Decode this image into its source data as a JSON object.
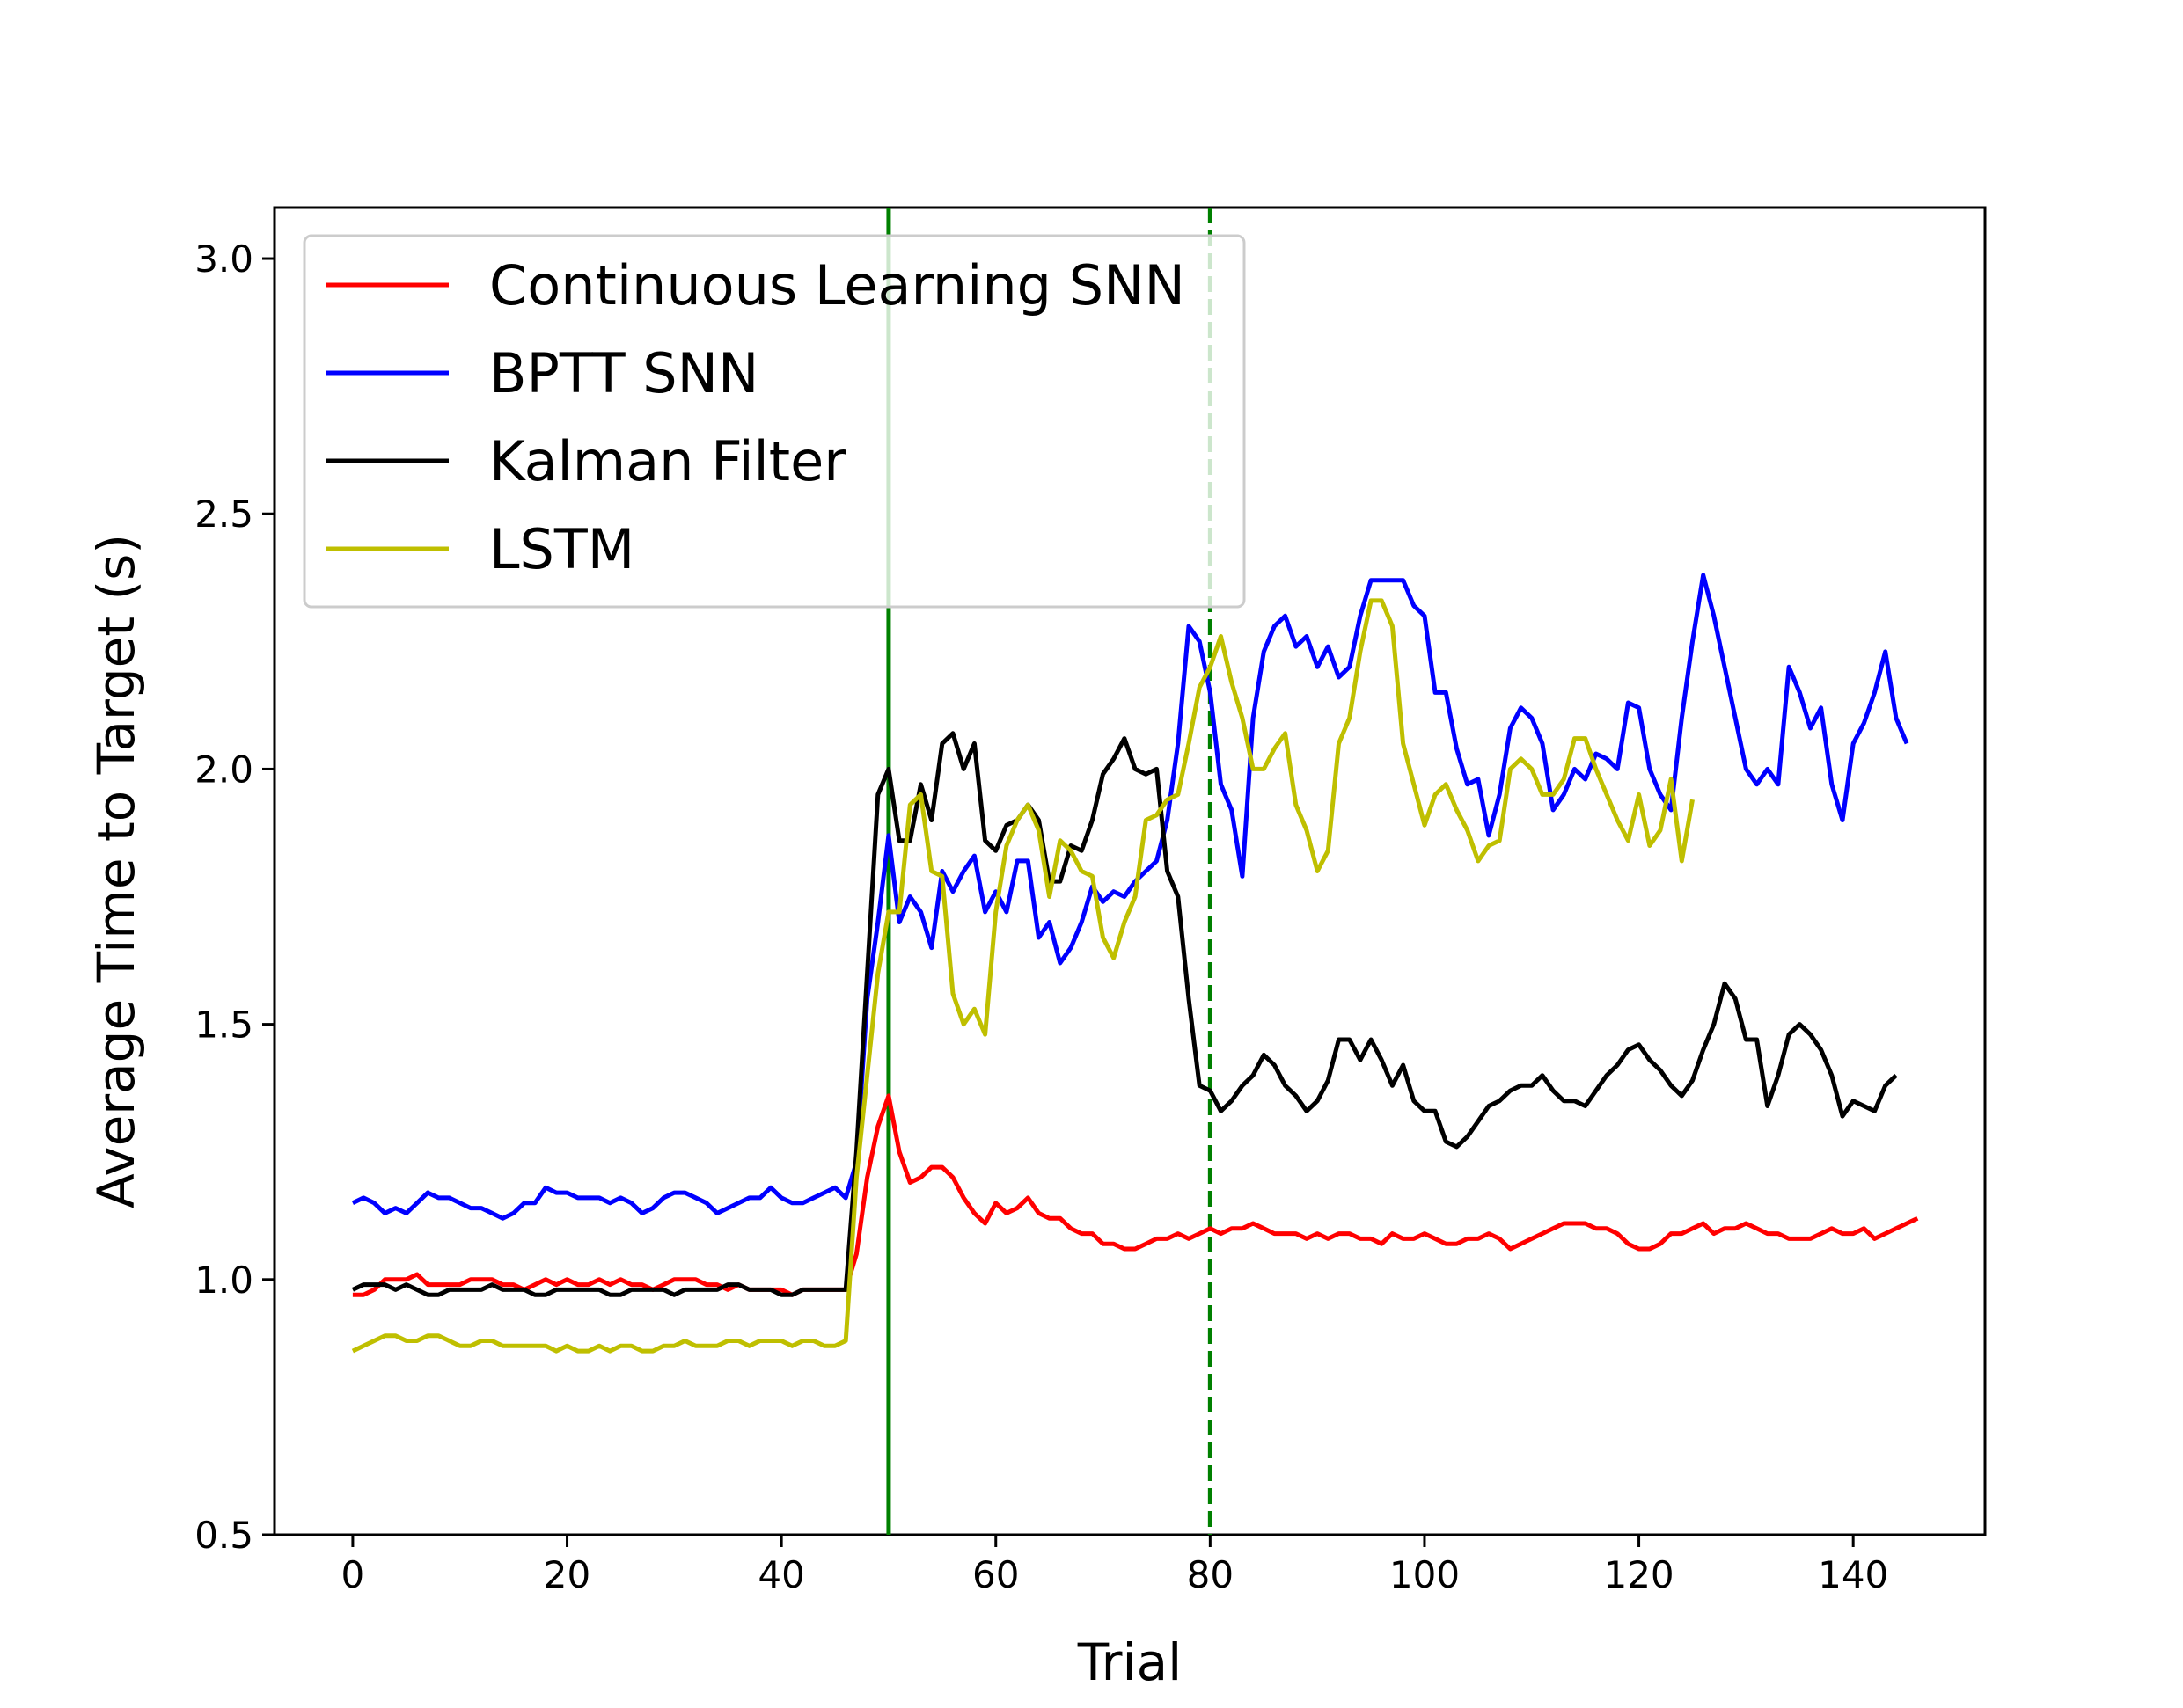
{
  "chart_data": {
    "type": "line",
    "title": "",
    "xlabel": "Trial",
    "ylabel": "Average Time to Target (s)",
    "xlim": [
      -7.3,
      152.3
    ],
    "ylim": [
      0.5,
      3.1
    ],
    "x_ticks": [
      0,
      20,
      40,
      60,
      80,
      100,
      120,
      140
    ],
    "y_ticks": [
      0.5,
      1.0,
      1.5,
      2.0,
      2.5,
      3.0
    ],
    "y_tick_labels": [
      "0.5",
      "1.0",
      "1.5",
      "2.0",
      "2.5",
      "3.0"
    ],
    "grid": false,
    "legend_position": "upper-left",
    "vlines": [
      {
        "x": 50,
        "style": "solid",
        "color": "#008000"
      },
      {
        "x": 80,
        "style": "dashed",
        "color": "#008000"
      }
    ],
    "series": [
      {
        "name": "Continuous Learning SNN",
        "color": "#ff0000",
        "values": [
          0.97,
          0.97,
          0.98,
          1.0,
          1.0,
          1.0,
          1.01,
          0.99,
          0.99,
          0.99,
          0.99,
          1.0,
          1.0,
          1.0,
          0.99,
          0.99,
          0.98,
          0.99,
          1.0,
          0.99,
          1.0,
          0.99,
          0.99,
          1.0,
          0.99,
          1.0,
          0.99,
          0.99,
          0.98,
          0.99,
          1.0,
          1.0,
          1.0,
          0.99,
          0.99,
          0.98,
          0.99,
          0.98,
          0.98,
          0.98,
          0.98,
          0.97,
          0.98,
          0.98,
          0.98,
          0.98,
          0.98,
          1.05,
          1.2,
          1.3,
          1.36,
          1.25,
          1.19,
          1.2,
          1.22,
          1.22,
          1.2,
          1.16,
          1.13,
          1.11,
          1.15,
          1.13,
          1.14,
          1.16,
          1.13,
          1.12,
          1.12,
          1.1,
          1.09,
          1.09,
          1.07,
          1.07,
          1.06,
          1.06,
          1.07,
          1.08,
          1.08,
          1.09,
          1.08,
          1.09,
          1.1,
          1.09,
          1.1,
          1.1,
          1.11,
          1.1,
          1.09,
          1.09,
          1.09,
          1.08,
          1.09,
          1.08,
          1.09,
          1.09,
          1.08,
          1.08,
          1.07,
          1.09,
          1.08,
          1.08,
          1.09,
          1.08,
          1.07,
          1.07,
          1.08,
          1.08,
          1.09,
          1.08,
          1.06,
          1.07,
          1.08,
          1.09,
          1.1,
          1.11,
          1.11,
          1.11,
          1.1,
          1.1,
          1.09,
          1.07,
          1.06,
          1.06,
          1.07,
          1.09,
          1.09,
          1.1,
          1.11,
          1.09,
          1.1,
          1.1,
          1.11,
          1.1,
          1.09,
          1.09,
          1.08,
          1.08,
          1.08,
          1.09,
          1.1,
          1.09,
          1.09,
          1.1,
          1.08,
          1.09,
          1.1,
          1.11,
          1.12
        ]
      },
      {
        "name": "BPTT SNN",
        "color": "#0000ff",
        "values": [
          1.15,
          1.16,
          1.15,
          1.13,
          1.14,
          1.13,
          1.15,
          1.17,
          1.16,
          1.16,
          1.15,
          1.14,
          1.14,
          1.13,
          1.12,
          1.13,
          1.15,
          1.15,
          1.18,
          1.17,
          1.17,
          1.16,
          1.16,
          1.16,
          1.15,
          1.16,
          1.15,
          1.13,
          1.14,
          1.16,
          1.17,
          1.17,
          1.16,
          1.15,
          1.13,
          1.14,
          1.15,
          1.16,
          1.16,
          1.18,
          1.16,
          1.15,
          1.15,
          1.16,
          1.17,
          1.18,
          1.16,
          1.23,
          1.55,
          1.7,
          1.87,
          1.7,
          1.75,
          1.72,
          1.65,
          1.8,
          1.76,
          1.8,
          1.83,
          1.72,
          1.76,
          1.72,
          1.82,
          1.82,
          1.67,
          1.7,
          1.62,
          1.65,
          1.7,
          1.77,
          1.74,
          1.76,
          1.75,
          1.78,
          1.8,
          1.82,
          1.9,
          2.05,
          2.28,
          2.25,
          2.15,
          1.97,
          1.92,
          1.79,
          2.1,
          2.23,
          2.28,
          2.3,
          2.24,
          2.26,
          2.2,
          2.24,
          2.18,
          2.2,
          2.3,
          2.37,
          2.37,
          2.37,
          2.37,
          2.32,
          2.3,
          2.15,
          2.15,
          2.04,
          1.97,
          1.98,
          1.87,
          1.95,
          2.08,
          2.12,
          2.1,
          2.05,
          1.92,
          1.95,
          2.0,
          1.98,
          2.03,
          2.02,
          2.0,
          2.13,
          2.12,
          2.0,
          1.95,
          1.92,
          2.1,
          2.25,
          2.38,
          2.3,
          2.2,
          2.1,
          2.0,
          1.97,
          2.0,
          1.97,
          2.2,
          2.15,
          2.08,
          2.12,
          1.97,
          1.9,
          2.05,
          2.09,
          2.15,
          2.23,
          2.1,
          2.05
        ]
      },
      {
        "name": "Kalman Filter",
        "color": "#000000",
        "values": [
          0.98,
          0.99,
          0.99,
          0.99,
          0.98,
          0.99,
          0.98,
          0.97,
          0.97,
          0.98,
          0.98,
          0.98,
          0.98,
          0.99,
          0.98,
          0.98,
          0.98,
          0.97,
          0.97,
          0.98,
          0.98,
          0.98,
          0.98,
          0.98,
          0.97,
          0.97,
          0.98,
          0.98,
          0.98,
          0.98,
          0.97,
          0.98,
          0.98,
          0.98,
          0.98,
          0.99,
          0.99,
          0.98,
          0.98,
          0.98,
          0.97,
          0.97,
          0.98,
          0.98,
          0.98,
          0.98,
          0.98,
          1.25,
          1.6,
          1.95,
          2.0,
          1.86,
          1.86,
          1.97,
          1.9,
          2.05,
          2.07,
          2.0,
          2.05,
          1.86,
          1.84,
          1.89,
          1.9,
          1.93,
          1.9,
          1.78,
          1.78,
          1.85,
          1.84,
          1.9,
          1.99,
          2.02,
          2.06,
          2.0,
          1.99,
          2.0,
          1.8,
          1.75,
          1.55,
          1.38,
          1.37,
          1.33,
          1.35,
          1.38,
          1.4,
          1.44,
          1.42,
          1.38,
          1.36,
          1.33,
          1.35,
          1.39,
          1.47,
          1.47,
          1.43,
          1.47,
          1.43,
          1.38,
          1.42,
          1.35,
          1.33,
          1.33,
          1.27,
          1.26,
          1.28,
          1.31,
          1.34,
          1.35,
          1.37,
          1.38,
          1.38,
          1.4,
          1.37,
          1.35,
          1.35,
          1.34,
          1.37,
          1.4,
          1.42,
          1.45,
          1.46,
          1.43,
          1.41,
          1.38,
          1.36,
          1.39,
          1.45,
          1.5,
          1.58,
          1.55,
          1.47,
          1.47,
          1.34,
          1.4,
          1.48,
          1.5,
          1.48,
          1.45,
          1.4,
          1.32,
          1.35,
          1.34,
          1.33,
          1.38,
          1.4
        ]
      },
      {
        "name": "LSTM",
        "color": "#bfbf00",
        "values": [
          0.86,
          0.87,
          0.88,
          0.89,
          0.89,
          0.88,
          0.88,
          0.89,
          0.89,
          0.88,
          0.87,
          0.87,
          0.88,
          0.88,
          0.87,
          0.87,
          0.87,
          0.87,
          0.87,
          0.86,
          0.87,
          0.86,
          0.86,
          0.87,
          0.86,
          0.87,
          0.87,
          0.86,
          0.86,
          0.87,
          0.87,
          0.88,
          0.87,
          0.87,
          0.87,
          0.88,
          0.88,
          0.87,
          0.88,
          0.88,
          0.88,
          0.87,
          0.88,
          0.88,
          0.87,
          0.87,
          0.88,
          1.2,
          1.4,
          1.6,
          1.72,
          1.72,
          1.93,
          1.95,
          1.8,
          1.79,
          1.56,
          1.5,
          1.53,
          1.48,
          1.72,
          1.85,
          1.9,
          1.93,
          1.88,
          1.75,
          1.86,
          1.84,
          1.8,
          1.79,
          1.67,
          1.63,
          1.7,
          1.75,
          1.9,
          1.91,
          1.94,
          1.95,
          2.05,
          2.16,
          2.2,
          2.26,
          2.17,
          2.1,
          2.0,
          2.0,
          2.04,
          2.07,
          1.93,
          1.88,
          1.8,
          1.84,
          2.05,
          2.1,
          2.23,
          2.33,
          2.33,
          2.28,
          2.05,
          1.97,
          1.89,
          1.95,
          1.97,
          1.92,
          1.88,
          1.82,
          1.85,
          1.86,
          2.0,
          2.02,
          2.0,
          1.95,
          1.95,
          1.98,
          2.06,
          2.06,
          2.0,
          1.95,
          1.9,
          1.86,
          1.95,
          1.85,
          1.88,
          1.98,
          1.82,
          1.94
        ]
      }
    ]
  }
}
